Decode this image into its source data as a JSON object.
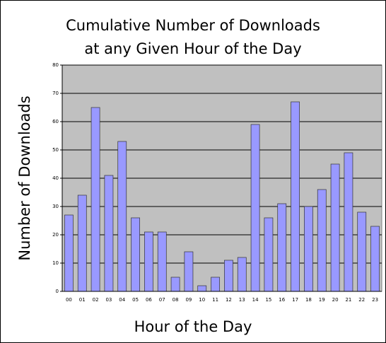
{
  "chart_data": {
    "type": "bar",
    "title": [
      "Cumulative Number of Downloads",
      "at any Given Hour of the Day"
    ],
    "x_label": "Hour of the Day",
    "y_label": "Number of Downloads",
    "categories": [
      "00",
      "01",
      "02",
      "03",
      "04",
      "05",
      "06",
      "07",
      "08",
      "09",
      "10",
      "11",
      "12",
      "13",
      "14",
      "15",
      "16",
      "17",
      "18",
      "19",
      "20",
      "21",
      "22",
      "23"
    ],
    "values": [
      27,
      34,
      65,
      41,
      53,
      26,
      21,
      21,
      5,
      14,
      2,
      5,
      11,
      12,
      59,
      26,
      31,
      67,
      30,
      36,
      45,
      49,
      28,
      23
    ],
    "color": "#9999ff",
    "ylim": [
      0,
      80
    ],
    "yticks": [
      0,
      10,
      20,
      30,
      40,
      50,
      60,
      70,
      80
    ],
    "grid": true
  }
}
